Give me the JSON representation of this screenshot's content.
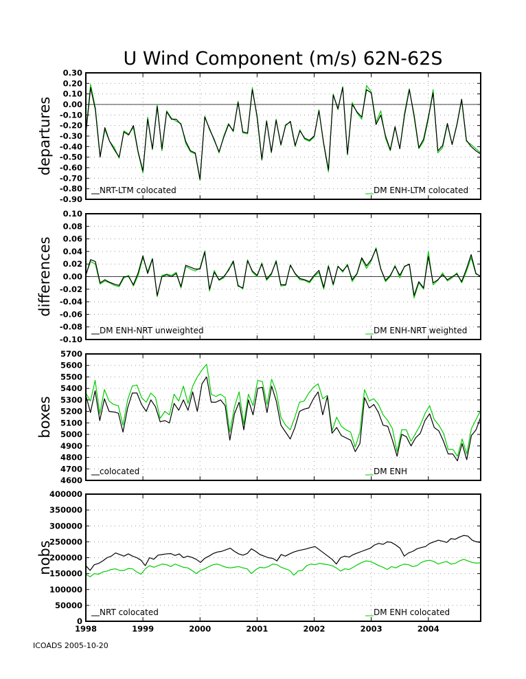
{
  "title": "U Wind Component (m/s) 62N-62S",
  "footer": "ICOADS 2005-10-20",
  "colors": {
    "black_series": "#000000",
    "green_series": "#00cc00",
    "grid": "#9a9a9a"
  },
  "x_axis": {
    "start": 1998.0,
    "end": 2004.9167,
    "tick_labels": [
      "1998",
      "1999",
      "2000",
      "2001",
      "2002",
      "2003",
      "2004"
    ]
  },
  "chart_data": [
    {
      "type": "line",
      "ylabel": "departures",
      "ylim": [
        -0.9,
        0.3
      ],
      "yticks": [
        "0.30",
        "0.20",
        "0.10",
        "0.00",
        "-0.10",
        "-0.20",
        "-0.30",
        "-0.40",
        "-0.50",
        "-0.60",
        "-0.70",
        "-0.80",
        "-0.90"
      ],
      "grid": true,
      "zero_line": true,
      "legend": "bottom",
      "series": [
        {
          "name": "NRT-LTM colocated",
          "color": "#000000",
          "values": [
            -0.28,
            0.16,
            -0.05,
            -0.5,
            -0.22,
            -0.35,
            -0.43,
            -0.5,
            -0.26,
            -0.29,
            -0.2,
            -0.45,
            -0.63,
            -0.14,
            -0.42,
            -0.02,
            -0.42,
            -0.07,
            -0.14,
            -0.14,
            -0.19,
            -0.35,
            -0.44,
            -0.46,
            -0.71,
            -0.12,
            -0.23,
            -0.34,
            -0.45,
            -0.31,
            -0.19,
            -0.25,
            0.02,
            -0.26,
            -0.27,
            0.14,
            -0.11,
            -0.52,
            -0.16,
            -0.45,
            -0.15,
            -0.38,
            -0.2,
            -0.16,
            -0.39,
            -0.25,
            -0.32,
            -0.34,
            -0.3,
            -0.06,
            -0.37,
            -0.62,
            0.09,
            -0.04,
            0.16,
            -0.47,
            0.0,
            -0.07,
            -0.12,
            0.14,
            0.11,
            -0.19,
            -0.1,
            -0.3,
            -0.43,
            -0.21,
            -0.42,
            -0.1,
            0.14,
            -0.1,
            -0.41,
            -0.33,
            -0.12,
            0.11,
            -0.44,
            -0.39,
            -0.18,
            -0.38,
            -0.19,
            0.05,
            -0.34,
            -0.4,
            -0.44,
            -0.47
          ]
        },
        {
          "name": "DM ENH-LTM colocated",
          "color": "#00cc00",
          "values": [
            -0.26,
            0.19,
            -0.03,
            -0.49,
            -0.24,
            -0.35,
            -0.41,
            -0.51,
            -0.25,
            -0.28,
            -0.22,
            -0.46,
            -0.65,
            -0.12,
            -0.43,
            0.0,
            -0.44,
            -0.06,
            -0.13,
            -0.16,
            -0.18,
            -0.37,
            -0.45,
            -0.47,
            -0.72,
            -0.11,
            -0.24,
            -0.33,
            -0.46,
            -0.3,
            -0.18,
            -0.26,
            0.03,
            -0.27,
            -0.28,
            0.16,
            -0.13,
            -0.53,
            -0.15,
            -0.46,
            -0.14,
            -0.39,
            -0.19,
            -0.17,
            -0.4,
            -0.24,
            -0.33,
            -0.35,
            -0.31,
            -0.05,
            -0.38,
            -0.64,
            0.1,
            -0.05,
            0.17,
            -0.48,
            0.02,
            -0.08,
            -0.14,
            0.18,
            0.12,
            -0.17,
            -0.06,
            -0.32,
            -0.44,
            -0.22,
            -0.42,
            -0.08,
            0.15,
            -0.12,
            -0.42,
            -0.35,
            -0.14,
            0.14,
            -0.46,
            -0.41,
            -0.19,
            -0.38,
            -0.2,
            0.04,
            -0.35,
            -0.38,
            -0.42,
            -0.46
          ]
        }
      ]
    },
    {
      "type": "line",
      "ylabel": "differences",
      "ylim": [
        -0.1,
        0.1
      ],
      "yticks": [
        "0.10",
        "0.08",
        "0.06",
        "0.04",
        "0.02",
        "0.00",
        "-0.02",
        "-0.04",
        "-0.06",
        "-0.08",
        "-0.10"
      ],
      "grid": true,
      "zero_line": true,
      "legend": "bottom",
      "series": [
        {
          "name": "DM ENH-NRT unweighted",
          "color": "#000000",
          "values": [
            0.002,
            0.027,
            0.024,
            -0.01,
            -0.005,
            -0.009,
            -0.012,
            -0.014,
            0.0,
            0.0,
            -0.013,
            0.006,
            0.033,
            0.005,
            0.028,
            -0.03,
            0.0,
            0.003,
            0.0,
            0.005,
            -0.016,
            0.018,
            0.015,
            0.012,
            0.012,
            0.039,
            -0.02,
            0.007,
            -0.005,
            0.0,
            0.01,
            0.025,
            -0.015,
            -0.018,
            0.025,
            0.009,
            0.002,
            0.02,
            -0.004,
            0.005,
            0.024,
            -0.013,
            -0.013,
            0.018,
            0.005,
            -0.003,
            -0.005,
            -0.008,
            0.002,
            0.01,
            -0.017,
            0.016,
            -0.012,
            0.016,
            0.009,
            0.018,
            -0.005,
            0.005,
            0.03,
            0.017,
            0.027,
            0.044,
            0.012,
            -0.006,
            0.002,
            0.016,
            0.002,
            0.016,
            0.02,
            -0.03,
            -0.008,
            -0.018,
            0.032,
            -0.01,
            -0.005,
            0.003,
            -0.005,
            0.0,
            0.004,
            -0.008,
            0.012,
            0.035,
            0.005,
            0.0
          ]
        },
        {
          "name": "DM ENH-NRT weighted",
          "color": "#00cc00",
          "values": [
            0.003,
            0.024,
            0.02,
            -0.012,
            -0.007,
            -0.01,
            -0.014,
            -0.016,
            -0.002,
            0.002,
            -0.015,
            0.002,
            0.03,
            0.008,
            0.029,
            -0.032,
            0.002,
            0.004,
            0.002,
            0.007,
            -0.018,
            0.016,
            0.012,
            0.009,
            0.014,
            0.041,
            -0.023,
            0.01,
            -0.006,
            -0.002,
            0.012,
            0.022,
            -0.013,
            -0.02,
            0.027,
            0.007,
            0.0,
            0.022,
            -0.006,
            0.003,
            0.026,
            -0.015,
            -0.014,
            0.019,
            0.004,
            -0.005,
            -0.006,
            -0.01,
            0.0,
            0.007,
            -0.02,
            0.018,
            -0.014,
            0.017,
            0.007,
            0.02,
            -0.008,
            0.004,
            0.028,
            0.013,
            0.025,
            0.046,
            0.013,
            -0.008,
            0.0,
            0.018,
            -0.002,
            0.017,
            0.019,
            -0.034,
            -0.01,
            -0.02,
            0.04,
            -0.013,
            -0.006,
            0.006,
            -0.007,
            -0.002,
            0.006,
            -0.01,
            0.008,
            0.03,
            0.004,
            0.001
          ]
        }
      ]
    },
    {
      "type": "line",
      "ylabel": "boxes",
      "ylim": [
        4600,
        5700
      ],
      "yticks": [
        "5700",
        "5600",
        "5500",
        "5400",
        "5300",
        "5200",
        "5100",
        "5000",
        "4900",
        "4800",
        "4700",
        "4600"
      ],
      "grid": true,
      "zero_line": false,
      "legend": "bottom",
      "series": [
        {
          "name": "colocated",
          "color": "#000000",
          "values": [
            5340,
            5190,
            5380,
            5120,
            5310,
            5200,
            5195,
            5185,
            5020,
            5230,
            5360,
            5360,
            5260,
            5200,
            5300,
            5240,
            5110,
            5120,
            5100,
            5270,
            5210,
            5300,
            5210,
            5370,
            5200,
            5440,
            5500,
            5280,
            5280,
            5300,
            5250,
            4950,
            5180,
            5280,
            5040,
            5300,
            5170,
            5400,
            5410,
            5190,
            5420,
            5290,
            5080,
            5020,
            4960,
            5060,
            5200,
            5220,
            5230,
            5310,
            5370,
            5170,
            5330,
            5010,
            5060,
            4990,
            4970,
            4950,
            4850,
            4920,
            5320,
            5230,
            5260,
            5190,
            5080,
            5070,
            4950,
            4810,
            5000,
            4980,
            4900,
            4970,
            5010,
            5120,
            5180,
            5060,
            5030,
            4940,
            4830,
            4830,
            4770,
            4920,
            4780,
            4990,
            5040,
            5150
          ]
        },
        {
          "name": "DM ENH",
          "color": "#00cc00",
          "values": [
            5360,
            5290,
            5470,
            5180,
            5390,
            5290,
            5260,
            5250,
            5080,
            5300,
            5420,
            5430,
            5320,
            5280,
            5360,
            5320,
            5140,
            5200,
            5170,
            5350,
            5290,
            5420,
            5270,
            5420,
            5500,
            5560,
            5610,
            5350,
            5330,
            5350,
            5320,
            5020,
            5240,
            5370,
            5090,
            5350,
            5250,
            5470,
            5460,
            5260,
            5480,
            5370,
            5150,
            5080,
            5040,
            5150,
            5280,
            5290,
            5360,
            5410,
            5440,
            5310,
            5340,
            5030,
            5150,
            5070,
            5040,
            5020,
            4890,
            5020,
            5390,
            5290,
            5310,
            5260,
            5170,
            5120,
            5050,
            4850,
            5040,
            5040,
            4940,
            5010,
            5080,
            5180,
            5250,
            5130,
            5080,
            5010,
            4870,
            4870,
            4810,
            4960,
            4830,
            5050,
            5130,
            5210
          ]
        }
      ]
    },
    {
      "type": "line",
      "ylabel": "nobs",
      "ylim": [
        0,
        400000
      ],
      "yticks": [
        "400000",
        "350000",
        "300000",
        "250000",
        "200000",
        "150000",
        "100000",
        "50000",
        "0"
      ],
      "grid": true,
      "zero_line": false,
      "legend": "bottom",
      "series": [
        {
          "name": "NRT colocated",
          "color": "#000000",
          "values": [
            175000,
            160000,
            178000,
            182000,
            190000,
            200000,
            205000,
            215000,
            210000,
            205000,
            212000,
            205000,
            200000,
            192000,
            175000,
            200000,
            195000,
            208000,
            210000,
            212000,
            213000,
            207000,
            212000,
            200000,
            205000,
            201000,
            195000,
            185000,
            198000,
            205000,
            213000,
            218000,
            220000,
            225000,
            230000,
            220000,
            212000,
            208000,
            213000,
            228000,
            220000,
            210000,
            205000,
            200000,
            198000,
            190000,
            210000,
            205000,
            212000,
            218000,
            222000,
            225000,
            228000,
            232000,
            235000,
            225000,
            215000,
            205000,
            195000,
            180000,
            200000,
            205000,
            202000,
            210000,
            215000,
            220000,
            225000,
            230000,
            240000,
            245000,
            242000,
            250000,
            248000,
            240000,
            230000,
            205000,
            215000,
            220000,
            228000,
            232000,
            235000,
            245000,
            250000,
            255000,
            252000,
            248000,
            260000,
            258000,
            265000,
            270000,
            268000,
            255000,
            250000,
            248000
          ]
        },
        {
          "name": "DM ENH colocated",
          "color": "#00cc00",
          "values": [
            148000,
            140000,
            150000,
            148000,
            155000,
            158000,
            163000,
            165000,
            160000,
            160000,
            166000,
            165000,
            155000,
            148000,
            165000,
            175000,
            170000,
            175000,
            180000,
            178000,
            172000,
            180000,
            175000,
            170000,
            168000,
            160000,
            150000,
            160000,
            165000,
            172000,
            178000,
            180000,
            175000,
            170000,
            168000,
            170000,
            172000,
            168000,
            165000,
            150000,
            162000,
            170000,
            168000,
            172000,
            180000,
            178000,
            170000,
            165000,
            160000,
            145000,
            158000,
            160000,
            175000,
            180000,
            178000,
            182000,
            180000,
            178000,
            175000,
            168000,
            158000,
            165000,
            163000,
            170000,
            178000,
            185000,
            190000,
            188000,
            182000,
            175000,
            170000,
            163000,
            172000,
            168000,
            175000,
            180000,
            178000,
            172000,
            175000,
            185000,
            190000,
            192000,
            188000,
            180000,
            185000,
            188000,
            180000,
            182000,
            190000,
            195000,
            190000,
            185000,
            183000,
            184000
          ]
        }
      ]
    }
  ]
}
